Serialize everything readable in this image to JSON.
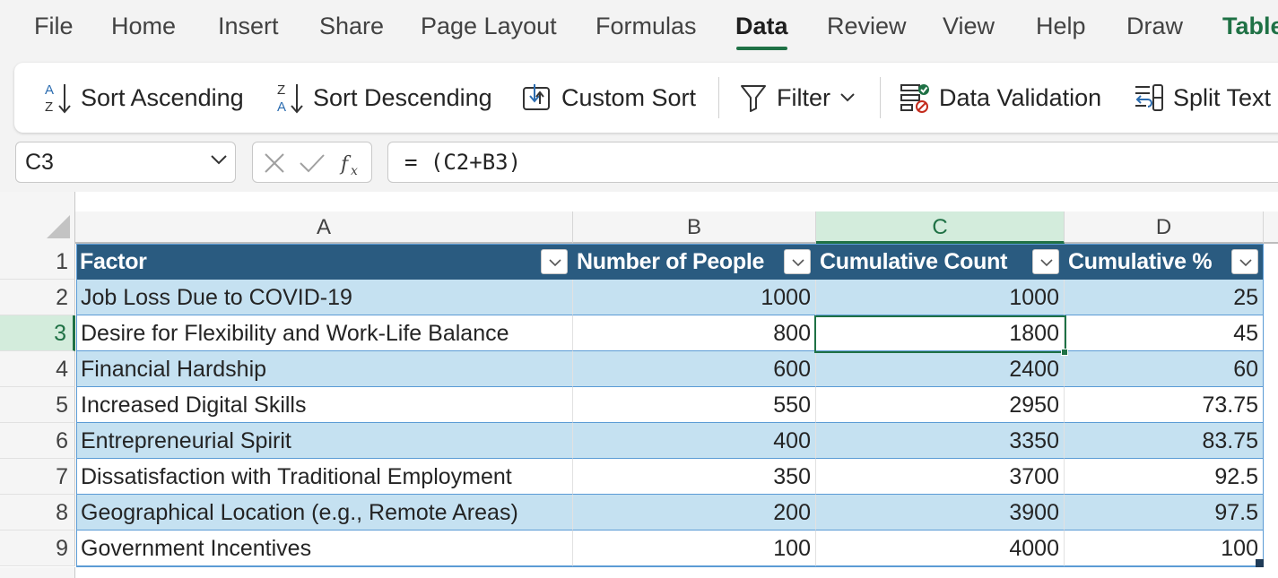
{
  "menu": {
    "items": [
      "File",
      "Home",
      "Insert",
      "Share",
      "Page Layout",
      "Formulas",
      "Data",
      "Review",
      "View",
      "Help",
      "Draw",
      "Table"
    ],
    "active": "Data"
  },
  "ribbon": {
    "sort_ascending": "Sort Ascending",
    "sort_descending": "Sort Descending",
    "custom_sort": "Custom Sort",
    "filter": "Filter",
    "data_validation": "Data Validation",
    "split_text": "Split Text"
  },
  "formula_bar": {
    "name_box": "C3",
    "formula": "= (C2+B3)"
  },
  "columns": [
    "A",
    "B",
    "C",
    "D"
  ],
  "selected_column": "C",
  "selected_row": "3",
  "table": {
    "headers": [
      "Factor",
      "Number of People",
      "Cumulative Count",
      "Cumulative %"
    ],
    "rows": [
      {
        "row": "2",
        "cells": [
          "Job Loss Due to COVID-19",
          "1000",
          "1000",
          "25"
        ]
      },
      {
        "row": "3",
        "cells": [
          "Desire for Flexibility and Work-Life Balance",
          "800",
          "1800",
          "45"
        ]
      },
      {
        "row": "4",
        "cells": [
          "Financial Hardship",
          "600",
          "2400",
          "60"
        ]
      },
      {
        "row": "5",
        "cells": [
          "Increased Digital Skills",
          "550",
          "2950",
          "73.75"
        ]
      },
      {
        "row": "6",
        "cells": [
          "Entrepreneurial Spirit",
          "400",
          "3350",
          "83.75"
        ]
      },
      {
        "row": "7",
        "cells": [
          "Dissatisfaction with Traditional Employment",
          "350",
          "3700",
          "92.5"
        ]
      },
      {
        "row": "8",
        "cells": [
          "Geographical Location (e.g., Remote Areas)",
          "200",
          "3900",
          "97.5"
        ]
      },
      {
        "row": "9",
        "cells": [
          "Government Incentives",
          "100",
          "4000",
          "100"
        ]
      }
    ]
  },
  "header_row_number": "1",
  "colors": {
    "accent": "#1f7145",
    "table_header": "#2a5b80",
    "band": "#c5e1f1"
  }
}
